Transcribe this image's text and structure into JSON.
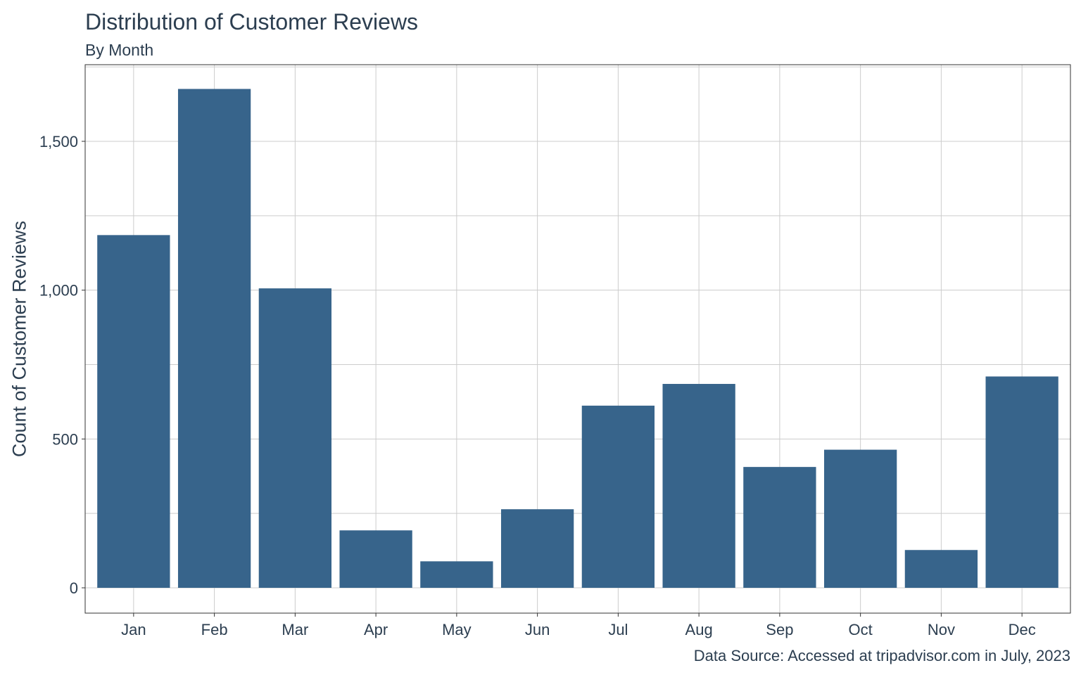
{
  "chart_data": {
    "type": "bar",
    "title": "Distribution of Customer Reviews",
    "subtitle": "By Month",
    "xlabel": "",
    "ylabel": "Count of Customer Reviews",
    "caption": "Data Source: Accessed at tripadvisor.com in July, 2023",
    "categories": [
      "Jan",
      "Feb",
      "Mar",
      "Apr",
      "May",
      "Jun",
      "Jul",
      "Aug",
      "Sep",
      "Oct",
      "Nov",
      "Dec"
    ],
    "values": [
      1185,
      1676,
      1006,
      193,
      89,
      264,
      612,
      685,
      406,
      464,
      127,
      710
    ],
    "ylim": [
      0,
      1750
    ],
    "yticks": [
      0,
      500,
      1000,
      1500
    ],
    "ytick_labels": [
      "0",
      "500",
      "1,000",
      "1,500"
    ],
    "grid": true,
    "bar_color": "#37648b",
    "grid_color": "#cccccc",
    "text_color": "#2c3e50"
  }
}
